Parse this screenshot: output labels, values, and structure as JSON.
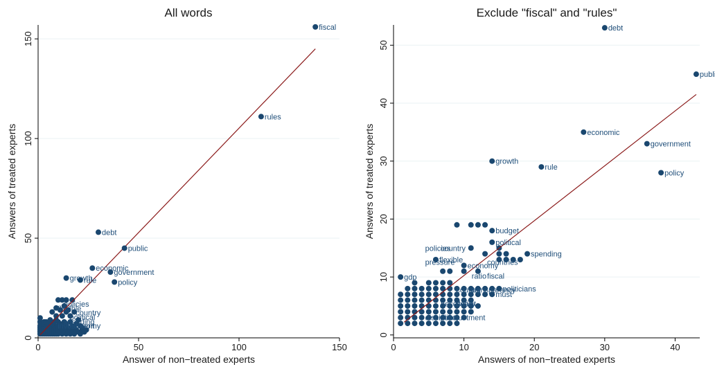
{
  "colors": {
    "point": "#1a476f",
    "label": "#1f4e79",
    "fit_line": "#8b1a1a",
    "grid": "#eaf2f3",
    "background": "#ffffff"
  },
  "chart_data": [
    {
      "type": "scatter",
      "title": "All words",
      "xlabel": "Answer of non−treated experts",
      "ylabel": "Answers of treated experts",
      "xlim": [
        0,
        150
      ],
      "ylim": [
        0,
        157
      ],
      "xticks": [
        "0",
        "50",
        "100",
        "150"
      ],
      "yticks": [
        "0",
        "50",
        "100",
        "150"
      ],
      "grid": true,
      "fit_line": {
        "x": [
          1,
          138
        ],
        "y": [
          1.5,
          145
        ]
      },
      "labeled_points": [
        {
          "label": "fiscal",
          "x": 138,
          "y": 156
        },
        {
          "label": "rules",
          "x": 111,
          "y": 111
        },
        {
          "label": "debt",
          "x": 30,
          "y": 53
        },
        {
          "label": "public",
          "x": 43,
          "y": 45
        },
        {
          "label": "economic",
          "x": 27,
          "y": 35
        },
        {
          "label": "government",
          "x": 36,
          "y": 33
        },
        {
          "label": "policy",
          "x": 38,
          "y": 28
        },
        {
          "label": "growth",
          "x": 14,
          "y": 30
        },
        {
          "label": "rule",
          "x": 21,
          "y": 29
        }
      ],
      "cluster_points": [
        [
          1,
          2
        ],
        [
          1,
          3
        ],
        [
          1,
          4
        ],
        [
          1,
          5
        ],
        [
          1,
          6
        ],
        [
          1,
          8
        ],
        [
          1,
          10
        ],
        [
          2,
          2
        ],
        [
          2,
          3
        ],
        [
          2,
          4
        ],
        [
          2,
          5
        ],
        [
          2,
          6
        ],
        [
          2,
          7
        ],
        [
          3,
          2
        ],
        [
          3,
          3
        ],
        [
          3,
          4
        ],
        [
          3,
          5
        ],
        [
          3,
          6
        ],
        [
          3,
          7
        ],
        [
          3,
          8
        ],
        [
          4,
          2
        ],
        [
          4,
          3
        ],
        [
          4,
          4
        ],
        [
          4,
          5
        ],
        [
          4,
          6
        ],
        [
          4,
          8
        ],
        [
          5,
          2
        ],
        [
          5,
          3
        ],
        [
          5,
          4
        ],
        [
          5,
          5
        ],
        [
          5,
          6
        ],
        [
          5,
          7
        ],
        [
          6,
          2
        ],
        [
          6,
          3
        ],
        [
          6,
          4
        ],
        [
          6,
          5
        ],
        [
          6,
          6
        ],
        [
          6,
          9
        ],
        [
          7,
          2
        ],
        [
          7,
          3
        ],
        [
          7,
          4
        ],
        [
          7,
          5
        ],
        [
          7,
          7
        ],
        [
          7,
          13
        ],
        [
          8,
          2
        ],
        [
          8,
          3
        ],
        [
          8,
          4
        ],
        [
          8,
          6
        ],
        [
          8,
          8
        ],
        [
          9,
          2
        ],
        [
          9,
          3
        ],
        [
          9,
          5
        ],
        [
          9,
          9
        ],
        [
          9,
          11
        ],
        [
          9,
          15
        ],
        [
          10,
          2
        ],
        [
          10,
          4
        ],
        [
          10,
          6
        ],
        [
          10,
          8
        ],
        [
          10,
          19
        ],
        [
          11,
          3
        ],
        [
          11,
          5
        ],
        [
          11,
          7
        ],
        [
          11,
          14
        ],
        [
          12,
          2
        ],
        [
          12,
          4
        ],
        [
          12,
          6
        ],
        [
          12,
          11
        ],
        [
          12,
          19
        ],
        [
          13,
          3
        ],
        [
          13,
          5
        ],
        [
          13,
          8
        ],
        [
          13,
          16
        ],
        [
          14,
          2
        ],
        [
          14,
          4
        ],
        [
          14,
          7
        ],
        [
          14,
          13
        ],
        [
          14,
          19
        ],
        [
          15,
          3
        ],
        [
          15,
          5
        ],
        [
          15,
          14
        ],
        [
          16,
          2
        ],
        [
          16,
          4
        ],
        [
          16,
          8
        ],
        [
          16,
          11
        ],
        [
          17,
          3
        ],
        [
          17,
          6
        ],
        [
          17,
          19
        ],
        [
          18,
          2
        ],
        [
          18,
          5
        ],
        [
          18,
          13
        ],
        [
          19,
          4
        ],
        [
          19,
          7
        ],
        [
          20,
          3
        ],
        [
          20,
          9
        ],
        [
          21,
          2
        ],
        [
          21,
          6
        ],
        [
          22,
          4
        ],
        [
          22,
          5
        ],
        [
          23,
          3
        ],
        [
          24,
          4
        ]
      ],
      "cluster_labels": [
        "investment",
        "spending",
        "political",
        "country",
        "flexible",
        "policies",
        "economy"
      ]
    },
    {
      "type": "scatter",
      "title": "Exclude \"fiscal\" and \"rules\"",
      "xlabel": "Answers of non−treated experts",
      "ylabel": "Answers of treated experts",
      "xlim": [
        0,
        43.5
      ],
      "ylim": [
        -0.5,
        53.5
      ],
      "xticks": [
        "0",
        "10",
        "20",
        "30",
        "40"
      ],
      "yticks": [
        "0",
        "10",
        "20",
        "30",
        "40",
        "50"
      ],
      "grid": true,
      "fit_line": {
        "x": [
          1.5,
          43
        ],
        "y": [
          2.2,
          41.5
        ]
      },
      "labeled_points": [
        {
          "label": "debt",
          "x": 30,
          "y": 53
        },
        {
          "label": "public",
          "x": 43,
          "y": 45
        },
        {
          "label": "economic",
          "x": 27,
          "y": 35
        },
        {
          "label": "government",
          "x": 36,
          "y": 33
        },
        {
          "label": "growth",
          "x": 14,
          "y": 30
        },
        {
          "label": "rule",
          "x": 21,
          "y": 29
        },
        {
          "label": "policy",
          "x": 38,
          "y": 28
        },
        {
          "label": "budget",
          "x": 14,
          "y": 18
        },
        {
          "label": "political",
          "x": 14,
          "y": 16
        },
        {
          "label": "spending",
          "x": 19,
          "y": 14
        },
        {
          "label": "flexible",
          "x": 6,
          "y": 13
        },
        {
          "label": "economy",
          "x": 10,
          "y": 12
        },
        {
          "label": "gdp",
          "x": 1,
          "y": 10
        },
        {
          "label": "politicians",
          "x": 15,
          "y": 8
        },
        {
          "label": "must",
          "x": 14,
          "y": 7
        }
      ],
      "cluster_points": [
        [
          9,
          19
        ],
        [
          11,
          19
        ],
        [
          12,
          19
        ],
        [
          13,
          19
        ],
        [
          11,
          15
        ],
        [
          15,
          15
        ],
        [
          15,
          14
        ],
        [
          16,
          14
        ],
        [
          13,
          14
        ],
        [
          15,
          13
        ],
        [
          16,
          13
        ],
        [
          17,
          13
        ],
        [
          18,
          13
        ],
        [
          7,
          11
        ],
        [
          8,
          11
        ],
        [
          10,
          11
        ],
        [
          12,
          11
        ],
        [
          3,
          9
        ],
        [
          5,
          9
        ],
        [
          6,
          9
        ],
        [
          7,
          9
        ],
        [
          8,
          9
        ],
        [
          1,
          7
        ],
        [
          2,
          7
        ],
        [
          3,
          7
        ],
        [
          4,
          7
        ],
        [
          5,
          7
        ],
        [
          6,
          7
        ],
        [
          7,
          7
        ],
        [
          8,
          7
        ],
        [
          9,
          7
        ],
        [
          10,
          7
        ],
        [
          11,
          7
        ],
        [
          12,
          7
        ],
        [
          13,
          7
        ],
        [
          2,
          8
        ],
        [
          3,
          8
        ],
        [
          4,
          8
        ],
        [
          5,
          8
        ],
        [
          6,
          8
        ],
        [
          7,
          8
        ],
        [
          8,
          8
        ],
        [
          9,
          8
        ],
        [
          10,
          8
        ],
        [
          11,
          8
        ],
        [
          12,
          8
        ],
        [
          13,
          8
        ],
        [
          14,
          8
        ],
        [
          1,
          6
        ],
        [
          2,
          6
        ],
        [
          3,
          6
        ],
        [
          4,
          6
        ],
        [
          5,
          6
        ],
        [
          6,
          6
        ],
        [
          7,
          6
        ],
        [
          8,
          6
        ],
        [
          9,
          6
        ],
        [
          10,
          6
        ],
        [
          11,
          6
        ],
        [
          1,
          5
        ],
        [
          2,
          5
        ],
        [
          3,
          5
        ],
        [
          4,
          5
        ],
        [
          5,
          5
        ],
        [
          6,
          5
        ],
        [
          7,
          5
        ],
        [
          8,
          5
        ],
        [
          9,
          5
        ],
        [
          10,
          5
        ],
        [
          11,
          5
        ],
        [
          12,
          5
        ],
        [
          1,
          4
        ],
        [
          2,
          4
        ],
        [
          3,
          4
        ],
        [
          4,
          4
        ],
        [
          5,
          4
        ],
        [
          6,
          4
        ],
        [
          7,
          4
        ],
        [
          8,
          4
        ],
        [
          9,
          4
        ],
        [
          10,
          4
        ],
        [
          11,
          4
        ],
        [
          1,
          3
        ],
        [
          2,
          3
        ],
        [
          3,
          3
        ],
        [
          4,
          3
        ],
        [
          5,
          3
        ],
        [
          6,
          3
        ],
        [
          7,
          3
        ],
        [
          8,
          3
        ],
        [
          9,
          3
        ],
        [
          10,
          3
        ],
        [
          1,
          2
        ],
        [
          2,
          2
        ],
        [
          3,
          2
        ],
        [
          4,
          2
        ],
        [
          5,
          2
        ],
        [
          6,
          2
        ],
        [
          7,
          2
        ],
        [
          8,
          2
        ],
        [
          9,
          2
        ]
      ],
      "cluster_labels": [
        "disciplinejustment",
        "necessary",
        "country",
        "ratio",
        "countries",
        "policies",
        "debt",
        "deficit",
        "transparency",
        "fiscal",
        "pressure",
        "country"
      ]
    }
  ]
}
